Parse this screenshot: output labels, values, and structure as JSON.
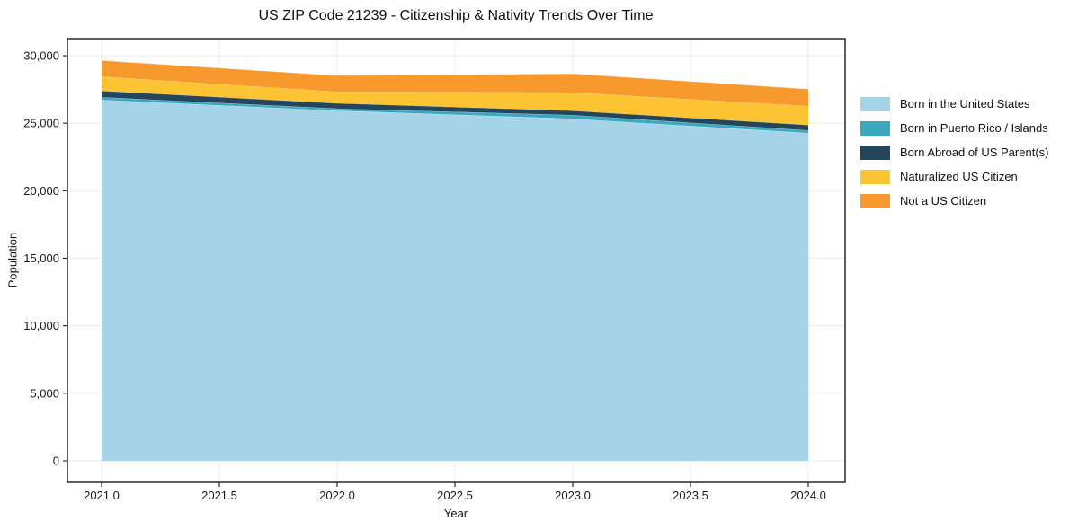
{
  "chart_data": {
    "type": "area",
    "stacked": true,
    "title": "US ZIP Code 21239 - Citizenship & Nativity Trends Over Time",
    "xlabel": "Year",
    "ylabel": "Population",
    "x": [
      2021,
      2022,
      2023,
      2024
    ],
    "series": [
      {
        "name": "Born in the United States",
        "color": "#a5d3e8",
        "values": [
          26730,
          25930,
          25330,
          24270
        ]
      },
      {
        "name": "Born in Puerto Rico / Islands",
        "color": "#3aa8bf",
        "values": [
          200,
          150,
          270,
          200
        ]
      },
      {
        "name": "Born Abroad of US Parent(s)",
        "color": "#25455c",
        "values": [
          470,
          400,
          330,
          400
        ]
      },
      {
        "name": "Naturalized US Citizen",
        "color": "#fcc433",
        "values": [
          1050,
          850,
          1340,
          1400
        ]
      },
      {
        "name": "Not a US Citizen",
        "color": "#f8992e",
        "values": [
          1200,
          1200,
          1400,
          1260
        ]
      }
    ],
    "stack_totals": [
      29650,
      28530,
      28670,
      27530
    ],
    "x_ticks": [
      2021.0,
      2021.5,
      2022.0,
      2022.5,
      2023.0,
      2023.5,
      2024.0
    ],
    "y_ticks": [
      0,
      5000,
      10000,
      15000,
      20000,
      25000,
      30000
    ],
    "xlim": [
      2020.85,
      2024.15
    ],
    "ylim": [
      -1600,
      31200
    ],
    "grid": true,
    "legend_position": "right-outside",
    "colors": {
      "grid": "#ebebeb",
      "spine": "#1a1a1a",
      "background": "#ffffff",
      "band_edge": "rgba(255,255,255,0.45)"
    }
  }
}
